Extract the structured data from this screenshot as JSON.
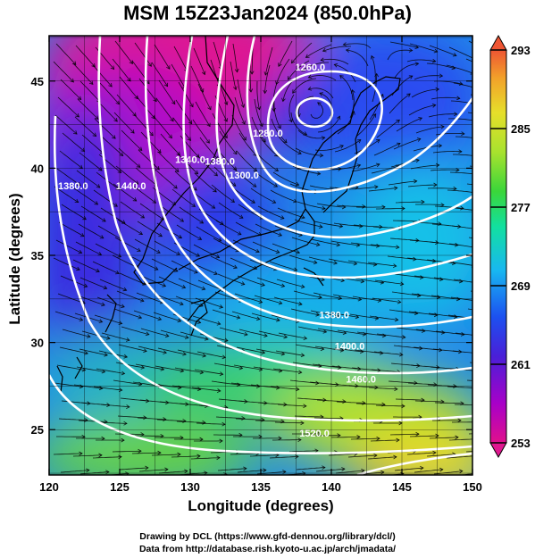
{
  "title": "MSM 15Z23Jan2024 (850.0hPa)",
  "x_axis": {
    "label": "Longitude (degrees)",
    "ticks": [
      120,
      125,
      130,
      135,
      140,
      145,
      150
    ],
    "range": [
      120,
      150
    ]
  },
  "y_axis": {
    "label": "Latitude  (degrees)",
    "ticks": [
      25,
      30,
      35,
      40,
      45
    ],
    "range": [
      22.4,
      47.6
    ]
  },
  "colorbar": {
    "ticks": [
      253,
      261,
      269,
      277,
      285,
      293
    ],
    "colors": [
      "#e0108c",
      "#a800c8",
      "#4a1fd8",
      "#1c50f0",
      "#18b8f0",
      "#12e0a0",
      "#3ad63a",
      "#a8e22e",
      "#e6df2a",
      "#f2a02a",
      "#ef5533"
    ]
  },
  "contour_labels": [
    {
      "text": "1260.0",
      "lon": 138.5,
      "lat": 45.6
    },
    {
      "text": "1280.0",
      "lon": 135.5,
      "lat": 41.8
    },
    {
      "text": "1300.0",
      "lon": 133.8,
      "lat": 39.4
    },
    {
      "text": "1340.0",
      "lon": 130.0,
      "lat": 40.3
    },
    {
      "text": "1380.0",
      "lon": 132.1,
      "lat": 40.2
    },
    {
      "text": "1380.0",
      "lon": 121.7,
      "lat": 38.8
    },
    {
      "text": "1440.0",
      "lon": 125.8,
      "lat": 38.8
    },
    {
      "text": "1380.0",
      "lon": 140.2,
      "lat": 31.4
    },
    {
      "text": "1400.0",
      "lon": 141.3,
      "lat": 29.6
    },
    {
      "text": "1460.0",
      "lon": 142.1,
      "lat": 27.7
    },
    {
      "text": "1520.0",
      "lon": 138.8,
      "lat": 24.6
    }
  ],
  "credits": {
    "line1": "Drawing by DCL (https://www.gfd-dennou.org/library/dcl/)",
    "line2": "Data from http://database.rish.kyoto-u.ac.jp/arch/jmadata/"
  }
}
